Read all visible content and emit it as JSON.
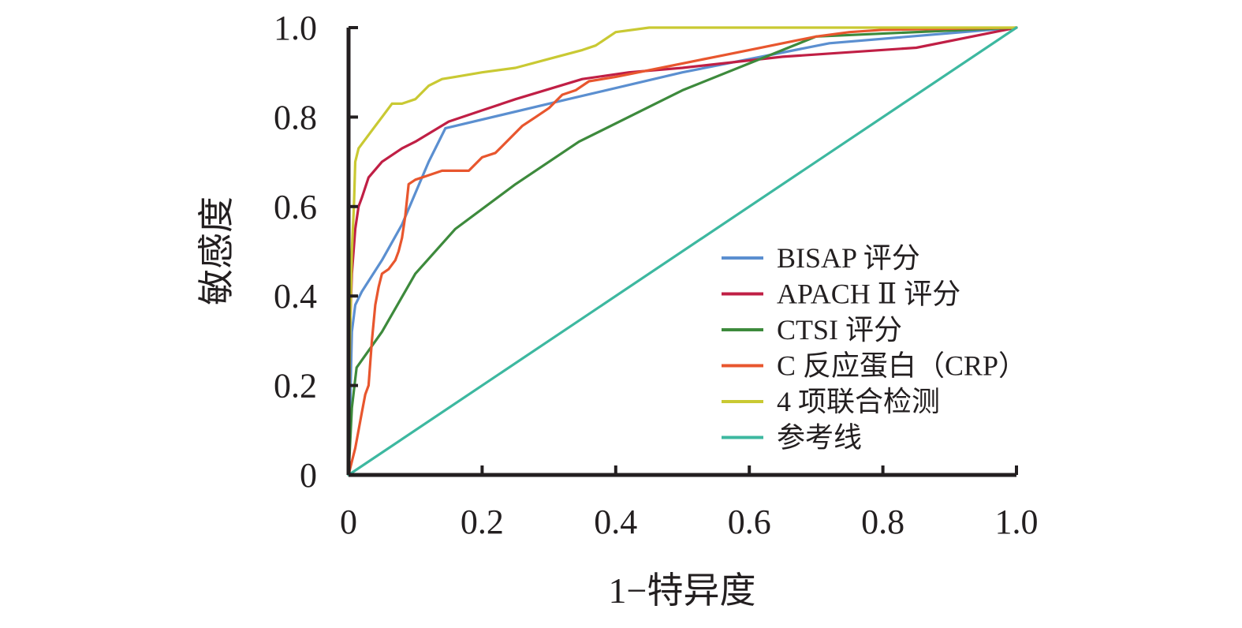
{
  "chart_data": {
    "type": "line",
    "title": "",
    "xlabel": "1−特异度",
    "ylabel": "敏感度",
    "xlim": [
      0,
      1
    ],
    "ylim": [
      0,
      1
    ],
    "x_ticks": [
      "0",
      "0.2",
      "0.4",
      "0.6",
      "0.8",
      "1.0"
    ],
    "y_ticks": [
      "0",
      "0.2",
      "0.4",
      "0.6",
      "0.8",
      "1.0"
    ],
    "grid": false,
    "legend_position": "bottom-right",
    "series": [
      {
        "name": "BISAP 评分",
        "color": "#5b8fd0",
        "x": [
          0,
          0.005,
          0.01,
          0.02,
          0.05,
          0.08,
          0.1,
          0.12,
          0.145,
          0.3,
          0.5,
          0.72,
          1.0
        ],
        "y": [
          0,
          0.32,
          0.38,
          0.41,
          0.48,
          0.56,
          0.63,
          0.7,
          0.775,
          0.83,
          0.9,
          0.965,
          1.0
        ]
      },
      {
        "name": "APACH Ⅱ 评分",
        "color": "#c01f45",
        "x": [
          0,
          0.002,
          0.005,
          0.01,
          0.015,
          0.02,
          0.03,
          0.05,
          0.08,
          0.1,
          0.15,
          0.2,
          0.25,
          0.35,
          0.42,
          0.5,
          0.65,
          0.85,
          1.0
        ],
        "y": [
          0,
          0.32,
          0.45,
          0.55,
          0.6,
          0.62,
          0.665,
          0.7,
          0.73,
          0.745,
          0.79,
          0.815,
          0.84,
          0.885,
          0.9,
          0.91,
          0.935,
          0.955,
          1.0
        ]
      },
      {
        "name": "CTSI 评分",
        "color": "#3d8a3c",
        "x": [
          0,
          0.005,
          0.012,
          0.05,
          0.1,
          0.16,
          0.25,
          0.345,
          0.5,
          0.7,
          1.0
        ],
        "y": [
          0,
          0.15,
          0.24,
          0.32,
          0.45,
          0.55,
          0.65,
          0.745,
          0.86,
          0.98,
          1.0
        ]
      },
      {
        "name": "C 反应蛋白（CRP）",
        "color": "#e8562e",
        "x": [
          0,
          0.005,
          0.01,
          0.015,
          0.02,
          0.025,
          0.03,
          0.035,
          0.04,
          0.045,
          0.05,
          0.06,
          0.07,
          0.075,
          0.08,
          0.085,
          0.09,
          0.1,
          0.12,
          0.14,
          0.15,
          0.18,
          0.2,
          0.22,
          0.24,
          0.26,
          0.28,
          0.3,
          0.32,
          0.34,
          0.36,
          0.4,
          0.45,
          0.5,
          0.55,
          0.6,
          0.65,
          0.7,
          0.75,
          0.8,
          1.0
        ],
        "y": [
          0,
          0.03,
          0.06,
          0.1,
          0.14,
          0.18,
          0.2,
          0.3,
          0.38,
          0.42,
          0.45,
          0.46,
          0.48,
          0.5,
          0.53,
          0.58,
          0.65,
          0.66,
          0.67,
          0.68,
          0.68,
          0.68,
          0.71,
          0.72,
          0.75,
          0.78,
          0.8,
          0.82,
          0.85,
          0.86,
          0.88,
          0.89,
          0.905,
          0.92,
          0.935,
          0.95,
          0.965,
          0.98,
          0.99,
          0.995,
          1.0
        ]
      },
      {
        "name": "4 项联合检测",
        "color": "#c9c933",
        "x": [
          0,
          0.002,
          0.005,
          0.008,
          0.01,
          0.015,
          0.02,
          0.03,
          0.04,
          0.05,
          0.065,
          0.08,
          0.1,
          0.12,
          0.14,
          0.16,
          0.2,
          0.25,
          0.3,
          0.35,
          0.37,
          0.4,
          0.45,
          1.0
        ],
        "y": [
          0,
          0.3,
          0.5,
          0.6,
          0.7,
          0.73,
          0.74,
          0.76,
          0.78,
          0.8,
          0.83,
          0.83,
          0.84,
          0.87,
          0.885,
          0.89,
          0.9,
          0.91,
          0.93,
          0.95,
          0.96,
          0.99,
          1.0,
          1.0
        ]
      },
      {
        "name": "参考线",
        "color": "#3db8a0",
        "x": [
          0,
          1
        ],
        "y": [
          0,
          1
        ]
      }
    ]
  }
}
